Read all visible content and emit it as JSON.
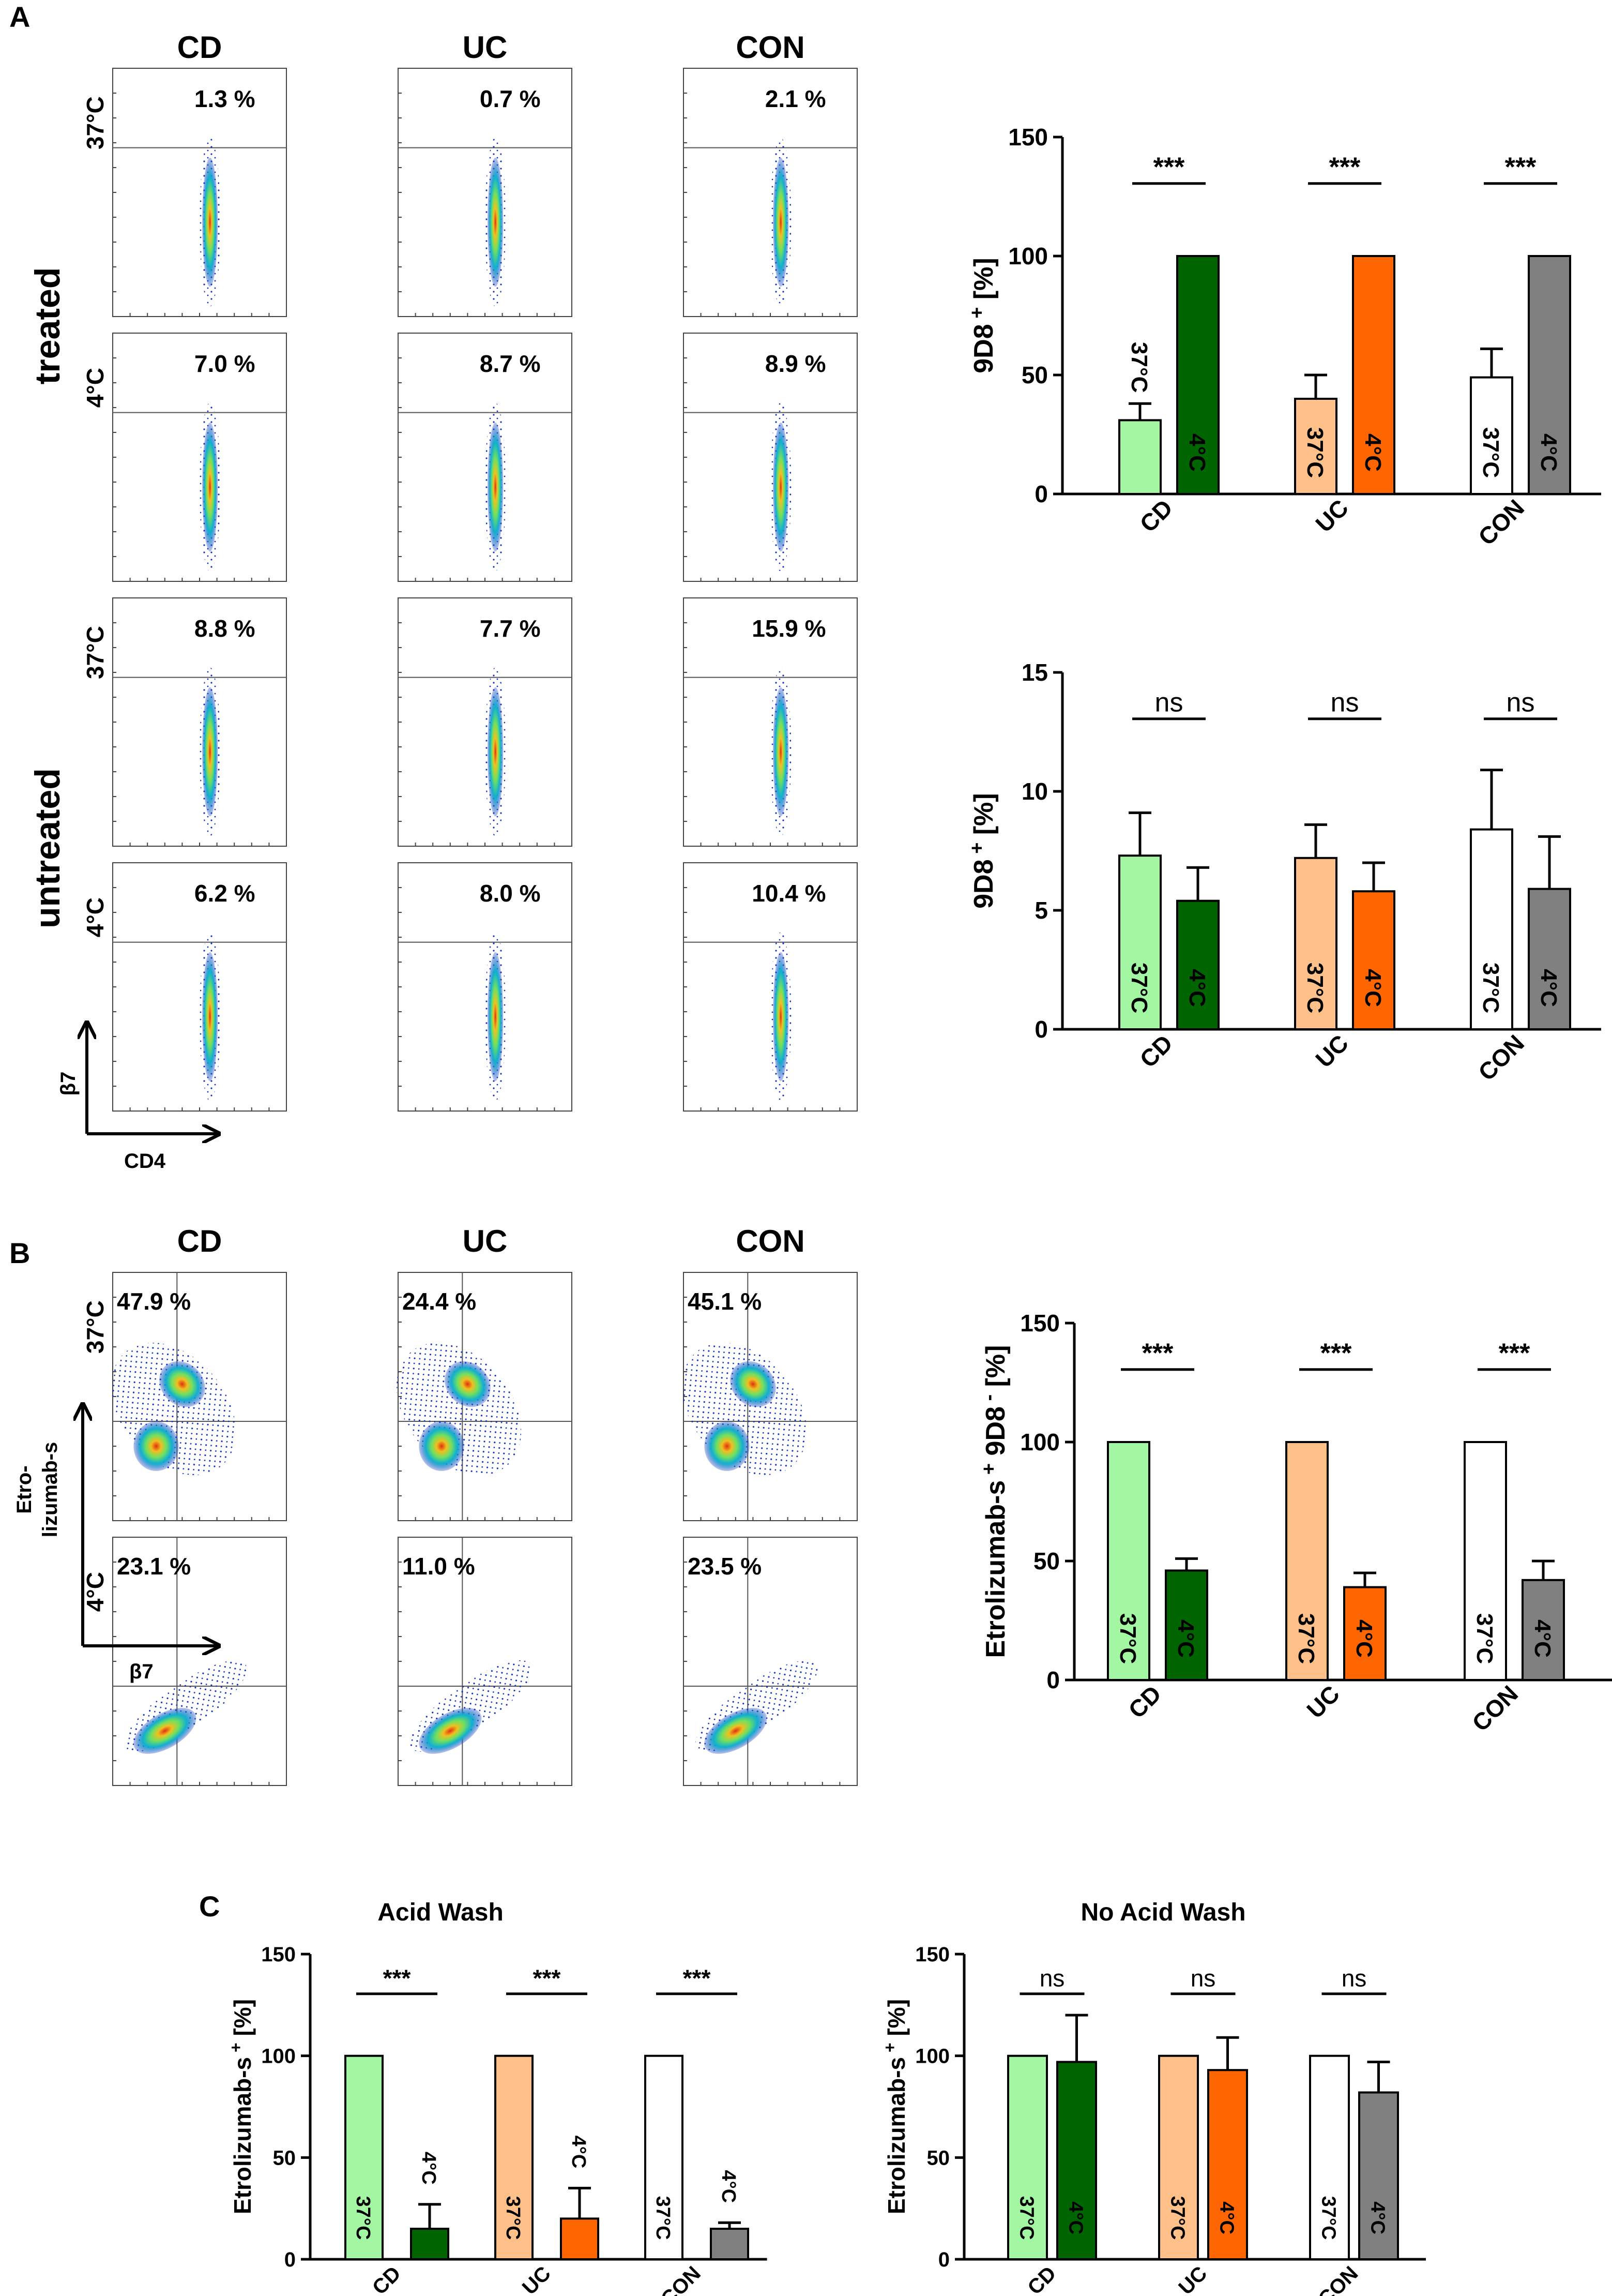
{
  "labels": {
    "panel_a": "A",
    "panel_b": "B",
    "panel_c": "C",
    "treated": "treated",
    "untreated": "untreated",
    "temp_37": "37°C",
    "temp_4": "4°C",
    "axis_a_y": "β7",
    "axis_a_x": "CD4",
    "axis_b_y1": "Etro-",
    "axis_b_y2": "lizumab-s",
    "axis_b_x": "β7"
  },
  "flow_a": {
    "columns": [
      "CD",
      "UC",
      "CON"
    ],
    "rows": [
      {
        "group": "treated",
        "temp": "37°C",
        "pcts": [
          "1.3 %",
          "0.7 %",
          "2.1 %"
        ]
      },
      {
        "group": "treated",
        "temp": "4°C",
        "pcts": [
          "7.0 %",
          "8.7 %",
          "8.9 %"
        ]
      },
      {
        "group": "untreated",
        "temp": "37°C",
        "pcts": [
          "8.8 %",
          "7.7 %",
          "15.9 %"
        ]
      },
      {
        "group": "untreated",
        "temp": "4°C",
        "pcts": [
          "6.2 %",
          "8.0 %",
          "10.4 %"
        ]
      }
    ]
  },
  "flow_b": {
    "columns": [
      "CD",
      "UC",
      "CON"
    ],
    "rows": [
      {
        "temp": "37°C",
        "pcts": [
          "47.9 %",
          "24.4 %",
          "45.1 %"
        ]
      },
      {
        "temp": "4°C",
        "pcts": [
          "23.1 %",
          "11.0 %",
          "23.5 %"
        ]
      }
    ]
  },
  "colors": {
    "CD_37": "#a3f7a3",
    "CD_4": "#006400",
    "UC_37": "#ffc08a",
    "UC_4": "#ff6600",
    "CON_37": "#ffffff",
    "CON_4": "#808080"
  },
  "chart_data": [
    {
      "id": "a_treated",
      "type": "bar",
      "title": "",
      "xlabel": "",
      "ylabel": "9D8 + [%]",
      "ylabel_main": "9D8",
      "ylabel_sup": "+",
      "ylabel_unit": "[%]",
      "ylim": [
        0,
        150
      ],
      "yticks": [
        0,
        50,
        100,
        150
      ],
      "ytick_labels": [
        "0",
        "50",
        "100",
        "150"
      ],
      "categories": [
        "CD",
        "UC",
        "CON"
      ],
      "bar_labels": [
        "37°C",
        "4°C"
      ],
      "series": [
        {
          "name": "37°C",
          "values": [
            31,
            40,
            49
          ],
          "errors": [
            7,
            10,
            12
          ]
        },
        {
          "name": "4°C",
          "values": [
            100,
            100,
            100
          ],
          "errors": [
            0,
            0,
            0
          ]
        }
      ],
      "significance": [
        "***",
        "***",
        "***"
      ]
    },
    {
      "id": "a_untreated",
      "type": "bar",
      "title": "",
      "xlabel": "",
      "ylabel": "9D8 + [%]",
      "ylabel_main": "9D8",
      "ylabel_sup": "+",
      "ylabel_unit": "[%]",
      "ylim": [
        0,
        15
      ],
      "yticks": [
        0,
        5,
        10,
        15
      ],
      "ytick_labels": [
        "0",
        "5",
        "10",
        "15"
      ],
      "categories": [
        "CD",
        "UC",
        "CON"
      ],
      "bar_labels": [
        "37°C",
        "4°C"
      ],
      "series": [
        {
          "name": "37°C",
          "values": [
            7.3,
            7.2,
            8.4
          ],
          "errors": [
            1.8,
            1.4,
            2.5
          ]
        },
        {
          "name": "4°C",
          "values": [
            5.4,
            5.8,
            5.9
          ],
          "errors": [
            1.4,
            1.2,
            2.2
          ]
        }
      ],
      "significance": [
        "ns",
        "ns",
        "ns"
      ]
    },
    {
      "id": "b",
      "type": "bar",
      "title": "",
      "xlabel": "",
      "ylabel": "Etrolizumab-s+ 9D8 - [%]",
      "ylabel_main": "Etrolizumab-s",
      "ylabel_sup": "+",
      "ylabel_mid": " 9D8",
      "ylabel_sup2": " -",
      "ylabel_unit": " [%]",
      "ylim": [
        0,
        150
      ],
      "yticks": [
        0,
        50,
        100,
        150
      ],
      "ytick_labels": [
        "0",
        "50",
        "100",
        "150"
      ],
      "categories": [
        "CD",
        "UC",
        "CON"
      ],
      "bar_labels": [
        "37°C",
        "4°C"
      ],
      "series": [
        {
          "name": "37°C",
          "values": [
            100,
            100,
            100
          ],
          "errors": [
            0,
            0,
            0
          ]
        },
        {
          "name": "4°C",
          "values": [
            46,
            39,
            42
          ],
          "errors": [
            5,
            6,
            8
          ]
        }
      ],
      "significance": [
        "***",
        "***",
        "***"
      ]
    },
    {
      "id": "c_acid",
      "type": "bar",
      "title": "Acid Wash",
      "xlabel": "",
      "ylabel": "Etrolizumab-s + [%]",
      "ylabel_main": "Etrolizumab-s",
      "ylabel_sup": "+",
      "ylabel_unit": "[%]",
      "ylim": [
        0,
        150
      ],
      "yticks": [
        0,
        50,
        100,
        150
      ],
      "ytick_labels": [
        "0",
        "50",
        "100",
        "150"
      ],
      "categories": [
        "CD",
        "UC",
        "CON"
      ],
      "bar_labels": [
        "37°C",
        "4°C"
      ],
      "series": [
        {
          "name": "37°C",
          "values": [
            100,
            100,
            100
          ],
          "errors": [
            0,
            0,
            0
          ]
        },
        {
          "name": "4°C",
          "values": [
            15,
            20,
            15
          ],
          "errors": [
            12,
            15,
            3
          ]
        }
      ],
      "significance": [
        "***",
        "***",
        "***"
      ]
    },
    {
      "id": "c_noacid",
      "type": "bar",
      "title": "No Acid Wash",
      "xlabel": "",
      "ylabel": "Etrolizumab-s + [%]",
      "ylabel_main": "Etrolizumab-s",
      "ylabel_sup": "+",
      "ylabel_unit": "[%]",
      "ylim": [
        0,
        150
      ],
      "yticks": [
        0,
        50,
        100,
        150
      ],
      "ytick_labels": [
        "0",
        "50",
        "100",
        "150"
      ],
      "categories": [
        "CD",
        "UC",
        "CON"
      ],
      "bar_labels": [
        "37°C",
        "4°C"
      ],
      "series": [
        {
          "name": "37°C",
          "values": [
            100,
            100,
            100
          ],
          "errors": [
            0,
            0,
            0
          ]
        },
        {
          "name": "4°C",
          "values": [
            97,
            93,
            82
          ],
          "errors": [
            23,
            16,
            15
          ]
        }
      ],
      "significance": [
        "ns",
        "ns",
        "ns"
      ]
    }
  ]
}
